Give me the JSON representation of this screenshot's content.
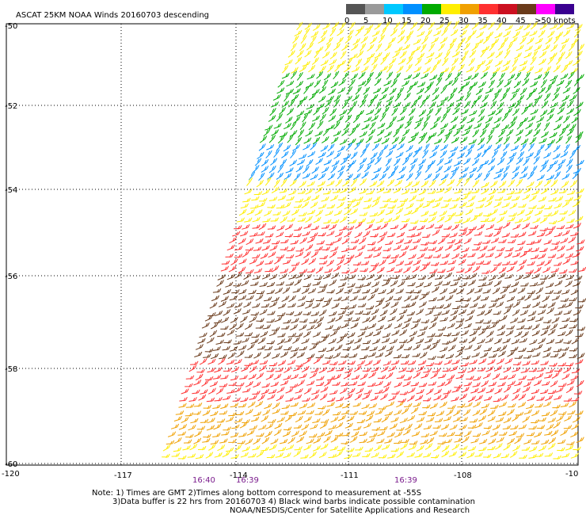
{
  "title": "ASCAT 25KM NOAA Winds 20160703 descending",
  "legend": {
    "labels": [
      "0",
      "5",
      "10",
      "15",
      "20",
      "25",
      "30",
      "35",
      "40",
      "45",
      ">50 knots"
    ],
    "colors": [
      "#555555",
      "#9a9a9a",
      "#00c8ff",
      "#0090ff",
      "#00aa00",
      "#ffee00",
      "#f0a000",
      "#ff3030",
      "#cc1020",
      "#6a3a1a",
      "#ff00ff",
      "#3a0090"
    ]
  },
  "axes": {
    "lat_labels": [
      "-50",
      "-52",
      "-54",
      "-56",
      "-58",
      "-60"
    ],
    "lon_labels": [
      "-120",
      "-117",
      "-114",
      "-111",
      "-108",
      "-10"
    ]
  },
  "times": [
    "16:40",
    "16:39",
    "16:39"
  ],
  "notes": [
    "Note: 1) Times are GMT 2)Times along bottom correspond to measurement at -55S",
    "3)Data buffer is 22 hrs from 20160703 4) Black wind barbs indicate possible contamination",
    "NOAA/NESDIS/Center for Satellite Applications and Research"
  ],
  "swath_color_bands": [
    {
      "lat": -50.5,
      "color": "#ffee00"
    },
    {
      "lat": -51.5,
      "color": "#00aa00"
    },
    {
      "lat": -53.2,
      "color": "#0090ff"
    },
    {
      "lat": -54.0,
      "color": "#ffee00"
    },
    {
      "lat": -55.0,
      "color": "#ff3030"
    },
    {
      "lat": -56.0,
      "color": "#6a3a1a"
    },
    {
      "lat": -58.0,
      "color": "#ff3030"
    },
    {
      "lat": -59.0,
      "color": "#f0a000"
    },
    {
      "lat": -60.0,
      "color": "#ffee00"
    }
  ]
}
